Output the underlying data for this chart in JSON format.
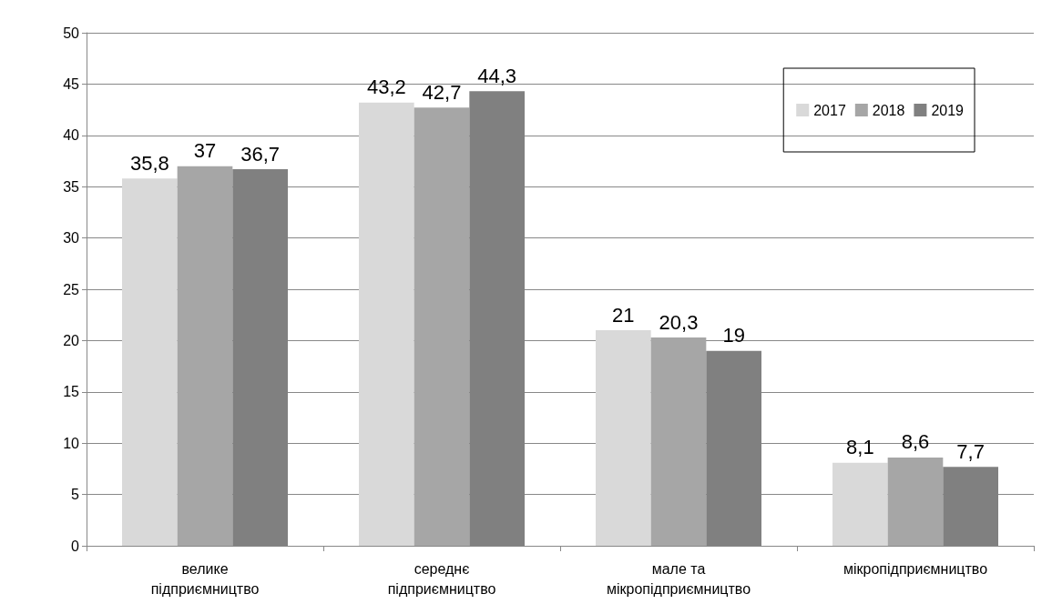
{
  "chart_data": {
    "type": "bar",
    "categories": [
      "велике підприємництво",
      "середнє підприємництво",
      "мале та мікропідприємництво",
      "мікропідприємництво"
    ],
    "series": [
      {
        "name": "2017",
        "color": "#d9d9d9",
        "values": [
          35.8,
          43.2,
          21,
          8.1
        ],
        "value_labels": [
          "35,8",
          "43,2",
          "21",
          "8,1"
        ]
      },
      {
        "name": "2018",
        "color": "#a6a6a6",
        "values": [
          37,
          42.7,
          20.3,
          8.6
        ],
        "value_labels": [
          "37",
          "42,7",
          "20,3",
          "8,6"
        ]
      },
      {
        "name": "2019",
        "color": "#808080",
        "values": [
          36.7,
          44.3,
          19,
          7.7
        ],
        "value_labels": [
          "36,7",
          "44,3",
          "19",
          "7,7"
        ]
      }
    ],
    "ylim": [
      0,
      50
    ],
    "yticks": [
      0,
      5,
      10,
      15,
      20,
      25,
      30,
      35,
      40,
      45,
      50
    ],
    "grid": "y",
    "legend": "top right"
  }
}
